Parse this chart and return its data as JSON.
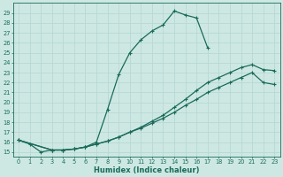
{
  "xlabel": "Humidex (Indice chaleur)",
  "bg_color": "#cde8e3",
  "line_color": "#1a6b5a",
  "grid_color": "#b8d8d4",
  "xlim": [
    -0.5,
    23.5
  ],
  "ylim": [
    14.5,
    30.0
  ],
  "yticks": [
    15,
    16,
    17,
    18,
    19,
    20,
    21,
    22,
    23,
    24,
    25,
    26,
    27,
    28,
    29
  ],
  "xticks": [
    0,
    1,
    2,
    3,
    4,
    5,
    6,
    7,
    8,
    9,
    10,
    11,
    12,
    13,
    14,
    15,
    16,
    17,
    18,
    19,
    20,
    21,
    22,
    23
  ],
  "curve1_x": [
    0,
    1,
    2,
    3,
    4,
    5,
    6,
    7,
    8,
    9,
    10,
    11,
    12,
    13,
    14,
    15,
    16,
    17
  ],
  "curve1_y": [
    16.2,
    15.8,
    15.0,
    15.2,
    15.2,
    15.3,
    15.5,
    16.0,
    19.3,
    22.8,
    25.0,
    26.3,
    27.2,
    27.8,
    29.2,
    28.8,
    28.5,
    25.5
  ],
  "curve2_x": [
    0,
    3,
    4,
    5,
    6,
    7,
    8,
    9,
    10,
    11,
    12,
    13,
    14,
    15,
    16,
    17,
    18,
    19,
    20,
    21,
    22,
    23
  ],
  "curve2_y": [
    16.2,
    15.2,
    15.2,
    15.3,
    15.5,
    15.8,
    16.1,
    16.5,
    17.0,
    17.5,
    18.1,
    18.7,
    19.5,
    20.3,
    21.2,
    22.0,
    22.5,
    23.0,
    23.5,
    23.8,
    23.3,
    23.2
  ],
  "curve3_x": [
    0,
    3,
    4,
    5,
    6,
    7,
    8,
    9,
    10,
    11,
    12,
    13,
    14,
    15,
    16,
    17,
    18,
    19,
    20,
    21,
    22,
    23
  ],
  "curve3_y": [
    16.2,
    15.2,
    15.2,
    15.3,
    15.5,
    15.8,
    16.1,
    16.5,
    17.0,
    17.4,
    17.9,
    18.4,
    19.0,
    19.7,
    20.3,
    21.0,
    21.5,
    22.0,
    22.5,
    23.0,
    22.0,
    21.8
  ]
}
